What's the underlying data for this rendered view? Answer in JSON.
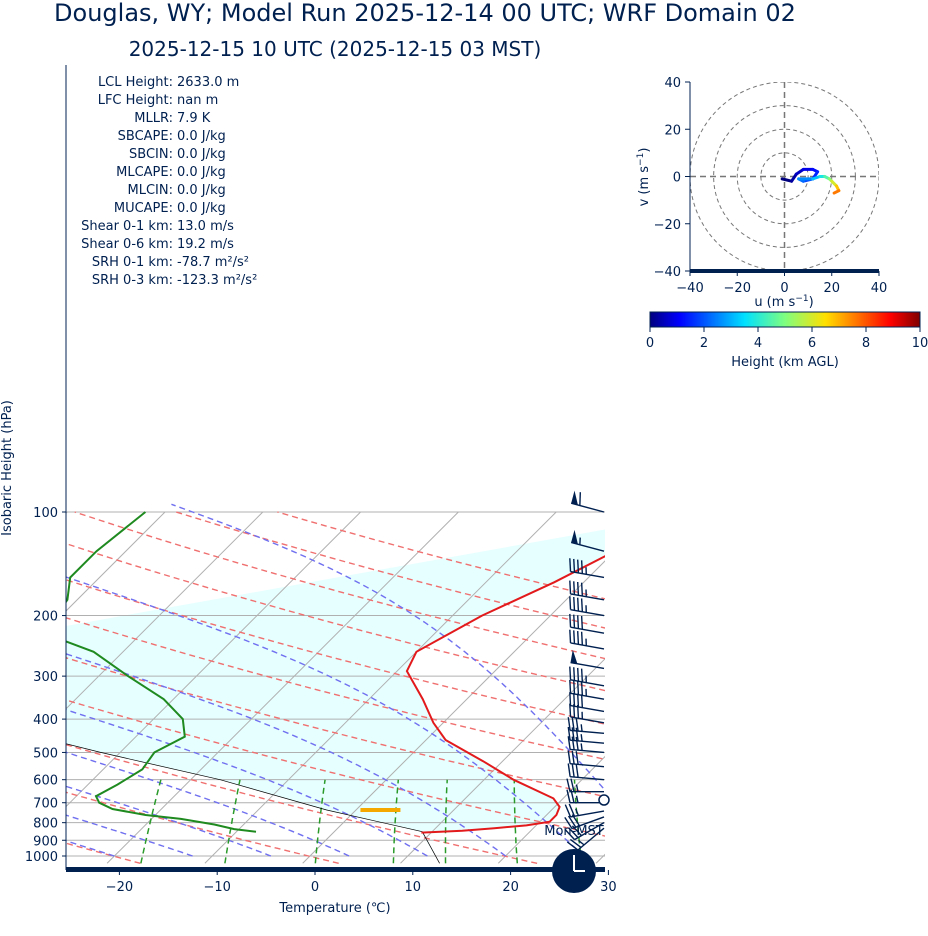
{
  "header": {
    "title": "Douglas, WY; Model Run 2025-12-14 00 UTC; WRF Domain 02",
    "subtitle": "2025-12-15 10 UTC  (2025-12-15 03 MST)"
  },
  "colors": {
    "text": "#002050",
    "temperature": "#e31a1c",
    "dewpoint": "#1f8a1f",
    "parcel": "#000000",
    "cape_shade": "#e6ffff",
    "dry_adiabat": "#f07070",
    "moist_adiabat": "#7070f0",
    "mixing_ratio": "#2a9a2a",
    "isotherm": "#b0b0b0",
    "isobar": "#b0b0b0",
    "lcl_marker": "#f5a800",
    "barbs": "#002050"
  },
  "indices": [
    {
      "label": "LCL Height:",
      "value": "2633.0 m"
    },
    {
      "label": "LFC Height:",
      "value": "nan m"
    },
    {
      "label": "MLLR:",
      "value": "7.9 K"
    },
    {
      "label": "SBCAPE:",
      "value": "0.0 J/kg"
    },
    {
      "label": "SBCIN:",
      "value": "0.0 J/kg"
    },
    {
      "label": "MLCAPE:",
      "value": "0.0 J/kg"
    },
    {
      "label": "MLCIN:",
      "value": "0.0 J/kg"
    },
    {
      "label": "MUCAPE:",
      "value": "0.0 J/kg"
    },
    {
      "label": "Shear 0-1 km:",
      "value": "13.0 m/s"
    },
    {
      "label": "Shear 0-6 km:",
      "value": "19.2 m/s"
    },
    {
      "label": "SRH 0-1 km:",
      "value": "-78.7 m²/s²"
    },
    {
      "label": "SRH 0-3 km:",
      "value": "-123.3 m²/s²"
    }
  ],
  "clock": {
    "label": "Mon-MST",
    "hour": 3,
    "minute": 0
  },
  "chart_data": [
    {
      "type": "skew-t",
      "ylabel": "Isobaric Height (hPa)",
      "xlabel": "Temperature (℃)",
      "pressure_ticks": [
        100,
        200,
        300,
        400,
        500,
        600,
        700,
        800,
        900,
        1000
      ],
      "temp_ticks": [
        -20,
        -10,
        0,
        10,
        20,
        30
      ],
      "xlim": [
        -25,
        30
      ],
      "ylim": [
        1050,
        100
      ],
      "log_pressure": true,
      "temperature_profile": [
        {
          "p": 855,
          "t": 9
        },
        {
          "p": 845,
          "t": 13
        },
        {
          "p": 830,
          "t": 16
        },
        {
          "p": 815,
          "t": 19
        },
        {
          "p": 795,
          "t": 21
        },
        {
          "p": 760,
          "t": 21
        },
        {
          "p": 720,
          "t": 20.5
        },
        {
          "p": 680,
          "t": 19
        },
        {
          "p": 600,
          "t": 13
        },
        {
          "p": 530,
          "t": 8
        },
        {
          "p": 460,
          "t": 2
        },
        {
          "p": 410,
          "t": -1
        },
        {
          "p": 350,
          "t": -4.5
        },
        {
          "p": 290,
          "t": -9
        },
        {
          "p": 255,
          "t": -10
        },
        {
          "p": 200,
          "t": -7
        },
        {
          "p": 160,
          "t": -3
        },
        {
          "p": 130,
          "t": 0
        },
        {
          "p": 112,
          "t": 3
        },
        {
          "p": 100,
          "t": 5
        }
      ],
      "dewpoint_profile": [
        {
          "p": 850,
          "t": -8
        },
        {
          "p": 835,
          "t": -10.5
        },
        {
          "p": 810,
          "t": -13
        },
        {
          "p": 780,
          "t": -17
        },
        {
          "p": 760,
          "t": -21
        },
        {
          "p": 730,
          "t": -25
        },
        {
          "p": 700,
          "t": -27
        },
        {
          "p": 670,
          "t": -28
        },
        {
          "p": 620,
          "t": -27
        },
        {
          "p": 560,
          "t": -26
        },
        {
          "p": 500,
          "t": -26.5
        },
        {
          "p": 450,
          "t": -25
        },
        {
          "p": 400,
          "t": -27
        },
        {
          "p": 350,
          "t": -31
        },
        {
          "p": 300,
          "t": -37
        },
        {
          "p": 255,
          "t": -43
        },
        {
          "p": 225,
          "t": -50
        },
        {
          "p": 180,
          "t": -51
        },
        {
          "p": 155,
          "t": -53
        },
        {
          "p": 130,
          "t": -53
        },
        {
          "p": 100,
          "t": -52
        }
      ],
      "parcel_profile": [
        {
          "p": 1050,
          "t": 14
        },
        {
          "p": 850,
          "t": 9
        },
        {
          "p": 735,
          "t": -3
        },
        {
          "p": 600,
          "t": -17
        },
        {
          "p": 500,
          "t": -32
        },
        {
          "p": 400,
          "t": -49
        },
        {
          "p": 300,
          "t": -72
        }
      ],
      "lcl": {
        "p": 735,
        "t": 2.5
      },
      "wind_barbs": [
        {
          "p": 100,
          "dir": 285,
          "spd": 60
        },
        {
          "p": 130,
          "dir": 285,
          "spd": 55
        },
        {
          "p": 155,
          "dir": 280,
          "spd": 45
        },
        {
          "p": 180,
          "dir": 280,
          "spd": 45
        },
        {
          "p": 200,
          "dir": 280,
          "spd": 45
        },
        {
          "p": 225,
          "dir": 280,
          "spd": 40
        },
        {
          "p": 250,
          "dir": 280,
          "spd": 45
        },
        {
          "p": 285,
          "dir": 280,
          "spd": 50
        },
        {
          "p": 320,
          "dir": 280,
          "spd": 45
        },
        {
          "p": 350,
          "dir": 280,
          "spd": 45
        },
        {
          "p": 380,
          "dir": 280,
          "spd": 40
        },
        {
          "p": 410,
          "dir": 280,
          "spd": 35
        },
        {
          "p": 440,
          "dir": 275,
          "spd": 35
        },
        {
          "p": 470,
          "dir": 275,
          "spd": 35
        },
        {
          "p": 500,
          "dir": 275,
          "spd": 35
        },
        {
          "p": 550,
          "dir": 275,
          "spd": 30
        },
        {
          "p": 600,
          "dir": 275,
          "spd": 30
        },
        {
          "p": 650,
          "dir": 270,
          "spd": 25
        },
        {
          "p": 700,
          "dir": 270,
          "spd": 25
        },
        {
          "p": 740,
          "dir": 260,
          "spd": 25
        },
        {
          "p": 770,
          "dir": 250,
          "spd": 30
        },
        {
          "p": 800,
          "dir": 240,
          "spd": 30
        },
        {
          "p": 830,
          "dir": 230,
          "spd": 25
        }
      ]
    },
    {
      "type": "hodograph",
      "xlabel": "u (m s$^{-1}$)",
      "ylabel": "v (m s$^{-1}$)",
      "xlim": [
        -40,
        40
      ],
      "ylim": [
        -40,
        40
      ],
      "ticks": [
        -40,
        -20,
        0,
        20,
        40
      ],
      "rings": [
        10,
        20,
        30,
        40
      ],
      "points": [
        {
          "u": -1,
          "v": -1,
          "h": 0
        },
        {
          "u": 3,
          "v": -2,
          "h": 0.3
        },
        {
          "u": 5,
          "v": 1,
          "h": 0.6
        },
        {
          "u": 8,
          "v": 3,
          "h": 0.9
        },
        {
          "u": 12,
          "v": 3,
          "h": 1.2
        },
        {
          "u": 14,
          "v": 2,
          "h": 1.5
        },
        {
          "u": 12,
          "v": -1,
          "h": 1.8
        },
        {
          "u": 8,
          "v": -2,
          "h": 2.2
        },
        {
          "u": 6,
          "v": -1,
          "h": 2.6
        },
        {
          "u": 12,
          "v": -1,
          "h": 3.2
        },
        {
          "u": 15,
          "v": 0,
          "h": 3.8
        },
        {
          "u": 17,
          "v": 0,
          "h": 4.5
        },
        {
          "u": 19,
          "v": -1,
          "h": 5.2
        },
        {
          "u": 20,
          "v": -2,
          "h": 6.0
        },
        {
          "u": 22,
          "v": -4,
          "h": 6.8
        },
        {
          "u": 23,
          "v": -6,
          "h": 7.6
        },
        {
          "u": 21,
          "v": -7,
          "h": 8.4
        }
      ],
      "colorbar": {
        "label": "Height (km AGL)",
        "ticks": [
          0,
          2,
          4,
          6,
          8,
          10
        ],
        "range": [
          0,
          10
        ]
      }
    }
  ]
}
